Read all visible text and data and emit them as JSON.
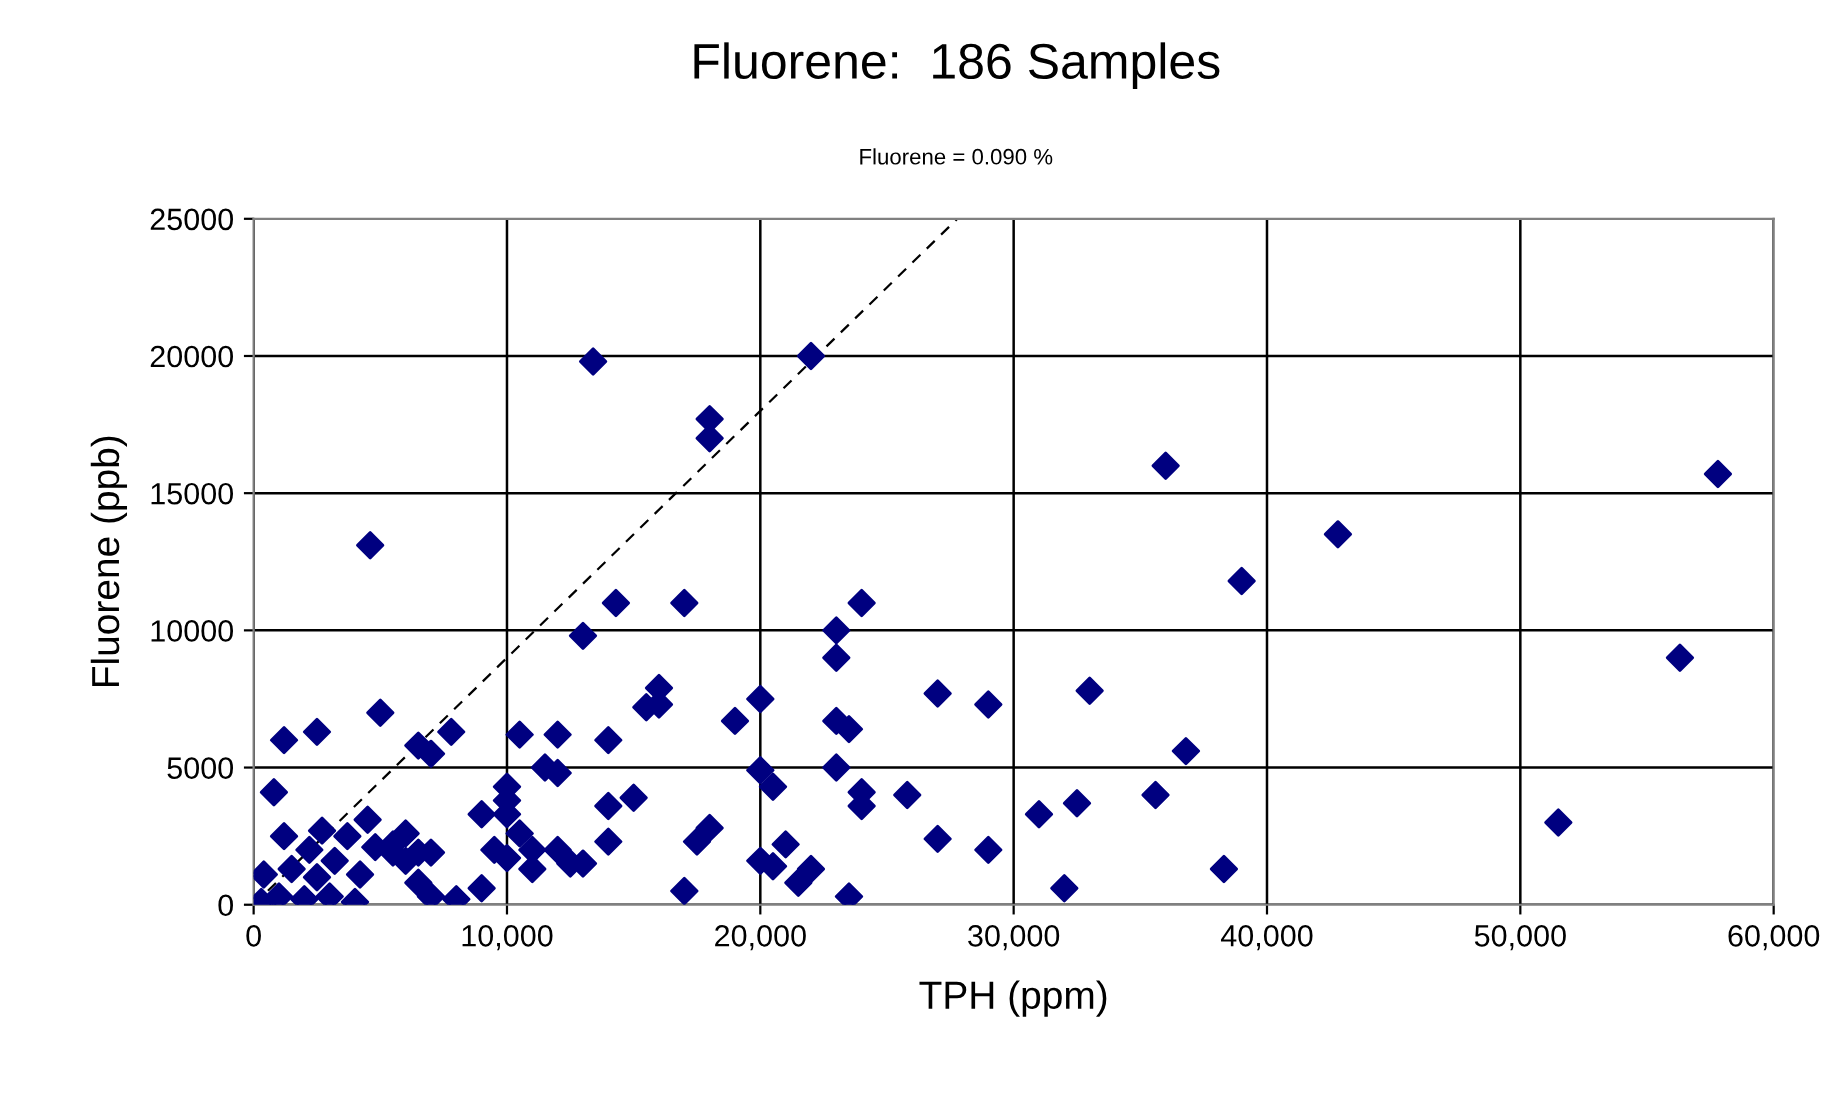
{
  "chart_data": {
    "type": "scatter",
    "title": "Fluorene:  186 Samples",
    "subtitle": "Fluorene = 0.090 %",
    "xlabel": "TPH (ppm)",
    "ylabel": "Fluorene (ppb)",
    "xlim": [
      0,
      60000
    ],
    "ylim": [
      0,
      25000
    ],
    "xticks": [
      0,
      {
        "value": 10000,
        "label": "10,000"
      },
      {
        "value": 20000,
        "label": "20,000"
      },
      {
        "value": 30000,
        "label": "30,000"
      },
      {
        "value": 40000,
        "label": "40,000"
      },
      {
        "value": 50000,
        "label": "50,000"
      },
      {
        "value": 60000,
        "label": "60,000"
      }
    ],
    "yticks": [
      0,
      5000,
      10000,
      15000,
      20000,
      25000
    ],
    "grid": true,
    "legend": false,
    "marker": "diamond",
    "series": [
      {
        "color": "#000080",
        "x": [
          4600,
          13400,
          22000,
          18000,
          18000,
          14300,
          13000,
          17000,
          24000,
          23000,
          23000,
          36000,
          57800,
          42800,
          39000,
          56300,
          33000,
          27000,
          29000,
          23000,
          23500,
          20000,
          19000,
          16000,
          15500,
          16000,
          14000,
          12000,
          10500,
          7800,
          7000,
          6500,
          5000,
          2500,
          1200,
          800,
          23000,
          20000,
          36800,
          35600,
          25800,
          24000,
          24000,
          20500,
          18000,
          17500,
          17000,
          15000,
          14000,
          14000,
          12000,
          11500,
          13000,
          12500,
          11000,
          10000,
          10000,
          10000,
          9000,
          9500,
          9000,
          8000,
          10500,
          10000,
          11000,
          12000,
          27000,
          29000,
          31000,
          32500,
          32000,
          38300,
          51500,
          20000,
          20500,
          21000,
          22000,
          21500,
          23500,
          7000,
          7000,
          6500,
          6500,
          6000,
          6000,
          5500,
          5500,
          300,
          400,
          1000,
          1200,
          1500,
          2000,
          2200,
          2500,
          2700,
          3000,
          3200,
          3700,
          4000,
          4200,
          4500,
          4800
        ],
        "values": [
          13100,
          19800,
          20000,
          17700,
          17000,
          11000,
          9800,
          11000,
          11000,
          10000,
          9000,
          16000,
          15700,
          13500,
          11800,
          9000,
          7800,
          7700,
          7300,
          6700,
          6400,
          7500,
          6700,
          7900,
          7200,
          7300,
          6000,
          6200,
          6200,
          6300,
          5500,
          5800,
          7000,
          6300,
          6000,
          4100,
          5000,
          4900,
          5600,
          4000,
          4000,
          4100,
          3600,
          4300,
          2800,
          2300,
          500,
          3900,
          3600,
          2300,
          4800,
          5000,
          1500,
          1500,
          1300,
          3800,
          3300,
          4300,
          3300,
          2000,
          600,
          200,
          2600,
          1700,
          2000,
          2000,
          2400,
          2000,
          3300,
          3700,
          600,
          1300,
          3000,
          1600,
          1400,
          2200,
          1300,
          800,
          300,
          300,
          1900,
          1900,
          800,
          2600,
          1600,
          1900,
          2200,
          100,
          1100,
          300,
          2500,
          1300,
          200,
          2000,
          1000,
          2700,
          300,
          1600,
          2500,
          100,
          1100,
          3100,
          2100
        ]
      },
      {
        "type": "line",
        "color": "#000000",
        "line_style": "dashed",
        "marker": "none",
        "x": [
          0,
          27778
        ],
        "values": [
          0,
          25000
        ]
      }
    ]
  }
}
